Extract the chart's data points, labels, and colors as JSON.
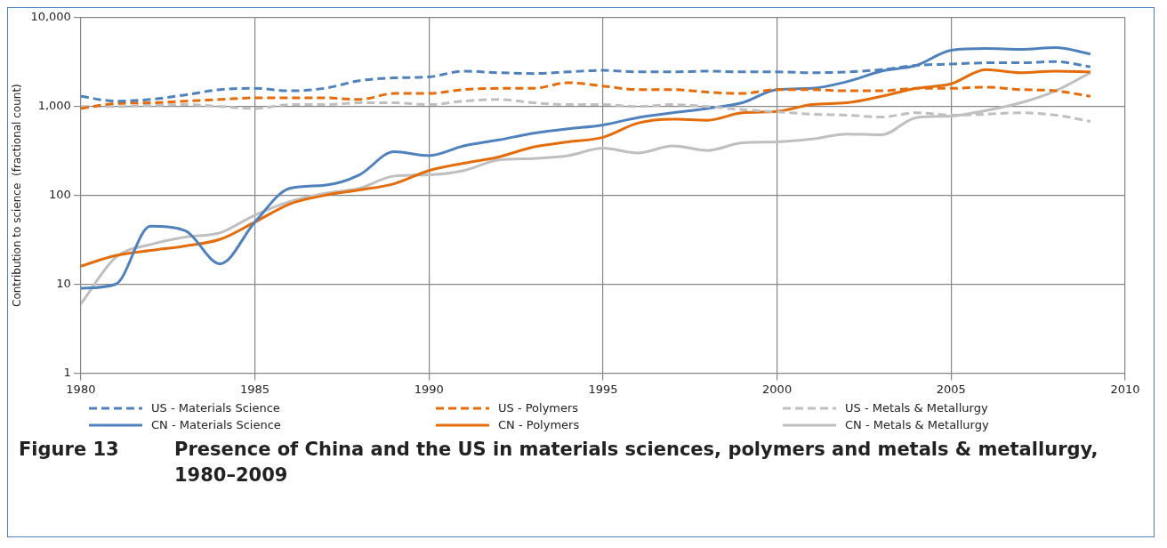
{
  "chart_data": {
    "type": "line",
    "title": "Presence of China and the US in materials sciences, polymers and metals & metallurgy, 1980–2009",
    "annotations": [
      "Figure 13"
    ],
    "ylabel": "Contribution to science  (fractional count)",
    "log": "y",
    "grid": true,
    "legend": "bottom",
    "marker": "none",
    "x": [
      1980,
      1981,
      1982,
      1983,
      1984,
      1985,
      1986,
      1987,
      1988,
      1989,
      1990,
      1991,
      1992,
      1993,
      1994,
      1995,
      1996,
      1997,
      1998,
      1999,
      2000,
      2001,
      2002,
      2003,
      2004,
      2005,
      2006,
      2007,
      2008,
      2009
    ],
    "xlim": [
      1980,
      2010
    ],
    "xticks": [
      1980,
      1985,
      1990,
      1995,
      2000,
      2005,
      2010
    ],
    "ylim": [
      1,
      10000
    ],
    "yticks": [
      1,
      10,
      100,
      {
        "value": 1000,
        "label": "1,000"
      },
      {
        "value": 10000,
        "label": "10,000"
      }
    ],
    "series": [
      {
        "name": "US - Materials Science",
        "color": "#4f81bd",
        "line_style": "dashed",
        "values": [
          1300,
          1150,
          1200,
          1350,
          1550,
          1600,
          1500,
          1600,
          1950,
          2100,
          2150,
          2500,
          2400,
          2350,
          2450,
          2550,
          2450,
          2450,
          2500,
          2450,
          2450,
          2400,
          2450,
          2600,
          2900,
          3000,
          3100,
          3100,
          3200,
          2800
        ]
      },
      {
        "name": "US - Polymers",
        "color": "#e46c0a",
        "line_style": "dashed",
        "values": [
          950,
          1080,
          1100,
          1150,
          1200,
          1250,
          1250,
          1250,
          1200,
          1400,
          1400,
          1550,
          1600,
          1600,
          1850,
          1700,
          1550,
          1550,
          1450,
          1400,
          1550,
          1550,
          1500,
          1500,
          1600,
          1600,
          1650,
          1550,
          1500,
          1300
        ]
      },
      {
        "name": "US - Metals & Metallurgy",
        "color": "#bfbfbf",
        "line_style": "dashed",
        "values": [
          1000,
          1000,
          1030,
          1050,
          1000,
          950,
          1050,
          1050,
          1100,
          1100,
          1050,
          1150,
          1200,
          1100,
          1050,
          1050,
          1000,
          1050,
          1000,
          920,
          870,
          820,
          800,
          760,
          850,
          800,
          820,
          850,
          800,
          680
        ]
      },
      {
        "name": "CN - Materials Science",
        "color": "#4f81bd",
        "line_style": "solid",
        "values": [
          9,
          10,
          45,
          40,
          17,
          50,
          120,
          130,
          170,
          310,
          280,
          360,
          420,
          500,
          560,
          620,
          750,
          850,
          950,
          1100,
          1550,
          1600,
          1900,
          2500,
          2900,
          4300,
          4500,
          4400,
          4600,
          3900
        ]
      },
      {
        "name": "CN - Polymers",
        "color": "#e46c0a",
        "line_style": "solid",
        "values": [
          16,
          21,
          24,
          27,
          32,
          50,
          80,
          100,
          115,
          135,
          190,
          230,
          270,
          350,
          400,
          450,
          650,
          720,
          700,
          850,
          880,
          1050,
          1100,
          1300,
          1600,
          1800,
          2600,
          2400,
          2500,
          2450
        ]
      },
      {
        "name": "CN - Metals & Metallurgy",
        "color": "#bfbfbf",
        "line_style": "solid",
        "values": [
          6,
          20,
          28,
          34,
          38,
          60,
          85,
          105,
          120,
          165,
          170,
          190,
          250,
          260,
          280,
          340,
          300,
          360,
          320,
          390,
          400,
          430,
          490,
          480,
          750,
          780,
          900,
          1100,
          1500,
          2400
        ]
      }
    ]
  }
}
